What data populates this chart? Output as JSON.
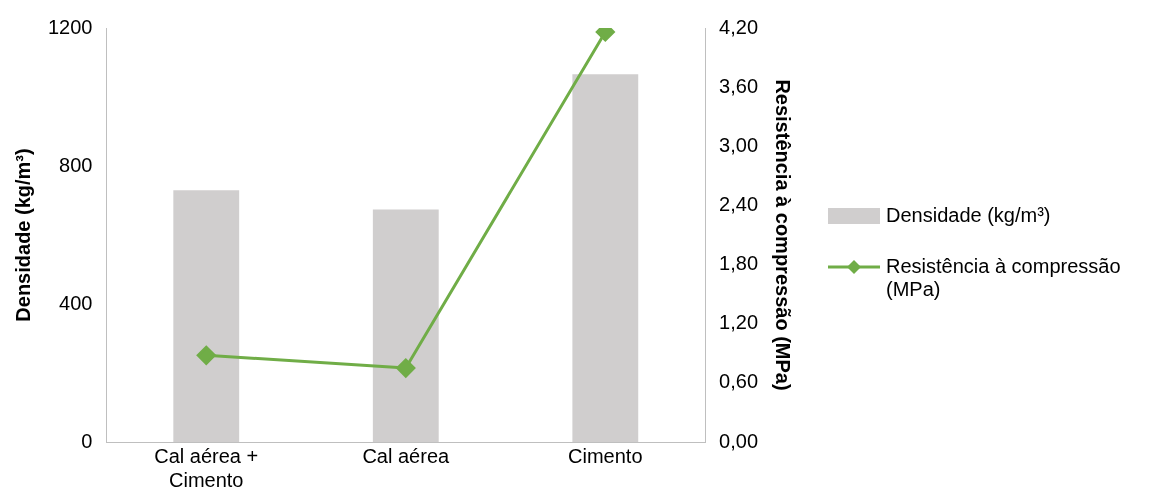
{
  "chart_data": {
    "type": "bar",
    "categories": [
      "Cal aérea + Cimento",
      "Cal aérea",
      "Cimento"
    ],
    "ylabel": "Densidade (kg/m³)",
    "y2label": "Resistência à compressão (MPa)",
    "ylim": [
      0,
      1200
    ],
    "yticks": [
      0,
      400,
      800,
      1200
    ],
    "y2lim": [
      0,
      4.2
    ],
    "y2ticks": [
      {
        "value": 0,
        "label": "0,00"
      },
      {
        "value": 0.6,
        "label": "0,60"
      },
      {
        "value": 1.2,
        "label": "1,20"
      },
      {
        "value": 1.8,
        "label": "1,80"
      },
      {
        "value": 2.4,
        "label": "2,40"
      },
      {
        "value": 3.0,
        "label": "3,00"
      },
      {
        "value": 3.6,
        "label": "3,60"
      },
      {
        "value": 4.2,
        "label": "4,20"
      }
    ],
    "grid": false,
    "legend": "right",
    "series": [
      {
        "name": "Densidade (kg/m³)",
        "color": "#d0cece",
        "values": [
          730,
          674,
          1066
        ]
      },
      {
        "name": "Resistência à compressão (MPa)",
        "type": "line",
        "axis": "y2",
        "color": "#70ad47",
        "marker": "diamond",
        "values": [
          0.88,
          0.75,
          4.16
        ]
      }
    ]
  }
}
